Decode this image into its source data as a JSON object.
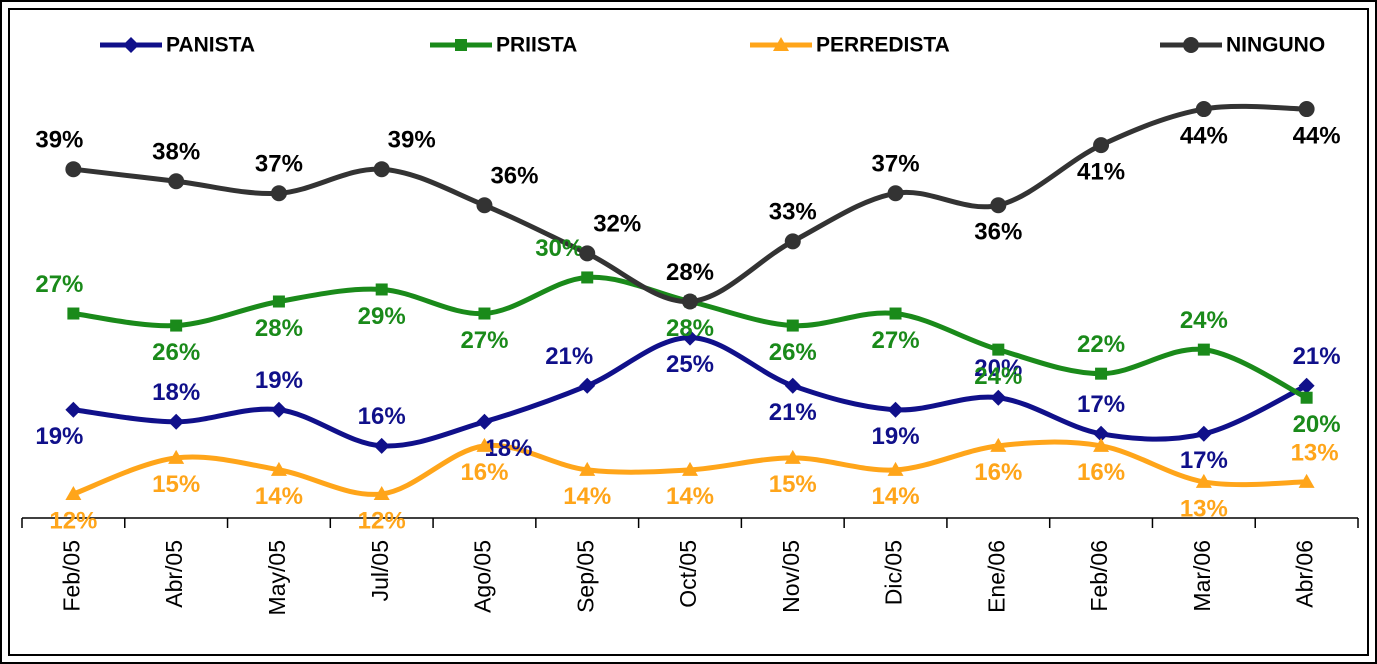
{
  "chart_data": {
    "type": "line",
    "categories": [
      "Feb/05",
      "Abr/05",
      "May/05",
      "Jul/05",
      "Ago/05",
      "Sep/05",
      "Oct/05",
      "Nov/05",
      "Dic/05",
      "Ene/06",
      "Feb/06",
      "Mar/06",
      "Abr/06"
    ],
    "ylim": [
      10,
      46
    ],
    "legend": "top",
    "series": [
      {
        "name": "PANISTA",
        "color": "#10108a",
        "marker": "diamond",
        "values": [
          19,
          18,
          19,
          16,
          18,
          21,
          25,
          21,
          19,
          20,
          17,
          17,
          21
        ],
        "value_labels": [
          "19%",
          "18%",
          "19%",
          "16%",
          "18%",
          "21%",
          "25%",
          "21%",
          "19%",
          "20%",
          "17%",
          "17%",
          "21%"
        ]
      },
      {
        "name": "PRIISTA",
        "color": "#1a8a1a",
        "marker": "square",
        "values": [
          27,
          26,
          28,
          29,
          27,
          30,
          28,
          26,
          27,
          24,
          22,
          24,
          20
        ],
        "value_labels": [
          "27%",
          "26%",
          "28%",
          "29%",
          "27%",
          "30%",
          "28%",
          "26%",
          "27%",
          "24%",
          "22%",
          "24%",
          "20%"
        ]
      },
      {
        "name": "PERREDISTA",
        "color": "#ffa51a",
        "marker": "triangle",
        "values": [
          12,
          15,
          14,
          12,
          16,
          14,
          14,
          15,
          14,
          16,
          16,
          13,
          13
        ],
        "value_labels": [
          "12%",
          "15%",
          "14%",
          "12%",
          "16%",
          "14%",
          "14%",
          "15%",
          "14%",
          "16%",
          "16%",
          "13%",
          "13%"
        ]
      },
      {
        "name": "NINGUNO",
        "color": "#333333",
        "marker": "circle",
        "values": [
          39,
          38,
          37,
          39,
          36,
          32,
          28,
          33,
          37,
          36,
          41,
          44,
          44
        ],
        "value_labels": [
          "39%",
          "38%",
          "37%",
          "39%",
          "36%",
          "32%",
          "28%",
          "33%",
          "37%",
          "36%",
          "41%",
          "44%",
          "44%"
        ]
      }
    ]
  }
}
